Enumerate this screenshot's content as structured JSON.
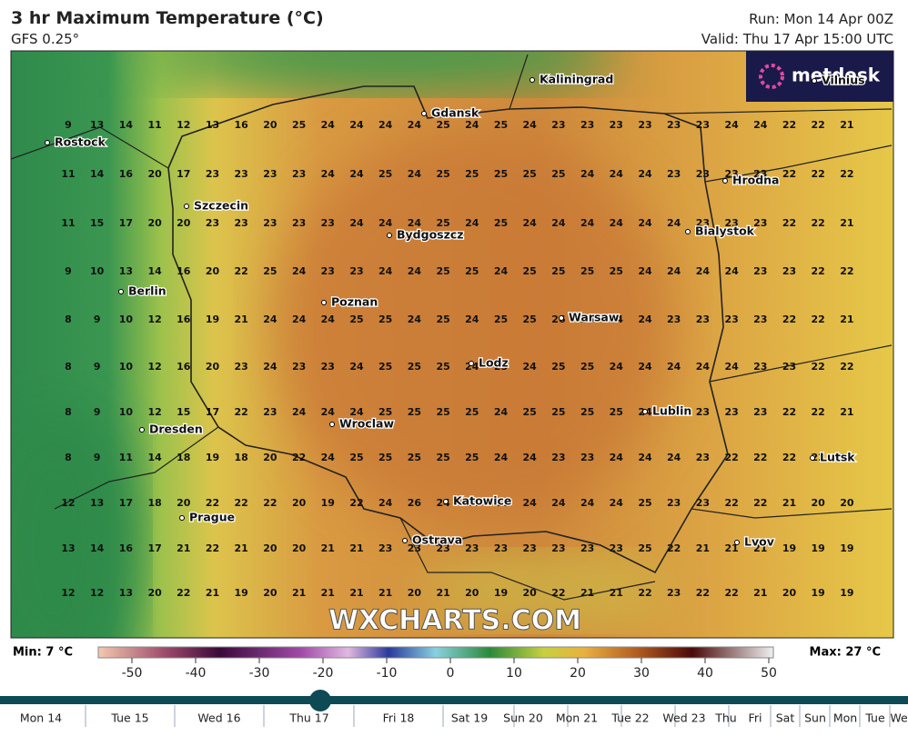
{
  "header": {
    "title": "3 hr Maximum Temperature (°C)",
    "model": "GFS 0.25°",
    "run": "Run: Mon 14 Apr 00Z",
    "valid": "Valid: Thu 17 Apr 15:00 UTC"
  },
  "map": {
    "values": [
      [
        9,
        13,
        14,
        11,
        12,
        13,
        16,
        20,
        25,
        24,
        24,
        24,
        24,
        25,
        24,
        25,
        24,
        23,
        23,
        23,
        23,
        23,
        23,
        24,
        24,
        22,
        22,
        21
      ],
      [
        11,
        14,
        16,
        20,
        17,
        23,
        23,
        23,
        23,
        24,
        24,
        25,
        24,
        25,
        25,
        25,
        25,
        25,
        24,
        24,
        24,
        23,
        23,
        23,
        23,
        22,
        22,
        22
      ],
      [
        11,
        15,
        17,
        20,
        20,
        23,
        23,
        23,
        23,
        23,
        24,
        24,
        24,
        25,
        24,
        25,
        24,
        24,
        24,
        24,
        24,
        24,
        23,
        23,
        23,
        22,
        22,
        21
      ],
      [
        9,
        10,
        13,
        14,
        16,
        20,
        22,
        25,
        24,
        23,
        23,
        24,
        24,
        25,
        25,
        24,
        25,
        25,
        25,
        25,
        24,
        24,
        24,
        24,
        23,
        23,
        22,
        22
      ],
      [
        8,
        9,
        10,
        12,
        16,
        19,
        21,
        24,
        24,
        24,
        25,
        25,
        24,
        25,
        24,
        25,
        25,
        26,
        25,
        24,
        24,
        23,
        23,
        23,
        23,
        22,
        22,
        21
      ],
      [
        8,
        9,
        10,
        12,
        16,
        20,
        23,
        24,
        23,
        23,
        24,
        25,
        25,
        25,
        24,
        23,
        24,
        25,
        25,
        24,
        24,
        24,
        24,
        24,
        23,
        23,
        22,
        22
      ],
      [
        8,
        9,
        10,
        12,
        15,
        17,
        22,
        23,
        24,
        24,
        24,
        25,
        25,
        25,
        25,
        24,
        25,
        25,
        25,
        25,
        24,
        23,
        23,
        23,
        23,
        22,
        22,
        21
      ],
      [
        8,
        9,
        11,
        14,
        18,
        19,
        18,
        20,
        22,
        24,
        25,
        25,
        25,
        25,
        25,
        24,
        24,
        23,
        23,
        24,
        24,
        24,
        23,
        22,
        22,
        22,
        22,
        22
      ],
      [
        12,
        13,
        17,
        18,
        20,
        22,
        22,
        22,
        20,
        19,
        22,
        24,
        26,
        24,
        24,
        24,
        24,
        24,
        24,
        24,
        25,
        23,
        23,
        22,
        22,
        21,
        20,
        20
      ],
      [
        13,
        14,
        16,
        17,
        21,
        22,
        21,
        20,
        20,
        21,
        21,
        23,
        23,
        23,
        23,
        23,
        23,
        23,
        23,
        23,
        25,
        22,
        21,
        21,
        21,
        19,
        19,
        19
      ],
      [
        12,
        12,
        13,
        20,
        22,
        21,
        19,
        20,
        21,
        21,
        21,
        21,
        20,
        21,
        20,
        19,
        20,
        22,
        21,
        21,
        22,
        23,
        22,
        22,
        21,
        20,
        19,
        19
      ]
    ],
    "cities": [
      "Kaliningrad",
      "Gdansk",
      "Rostock",
      "Hrodna",
      "Szczecin",
      "Bydgoszcz",
      "Bialystok",
      "Berlin",
      "Poznan",
      "Warsaw",
      "Lodz",
      "Lublin",
      "Dresden",
      "Wroclaw",
      "Lutsk",
      "Katowice",
      "Prague",
      "Ostrava",
      "Lvov",
      "Vilnius"
    ],
    "watermark": "WXCHARTS.COM",
    "logo": "metdesk"
  },
  "legend": {
    "min": "Min: 7 °C",
    "max": "Max: 27 °C",
    "ticks": [
      -50,
      -40,
      -30,
      -20,
      -10,
      0,
      10,
      20,
      30,
      40,
      50
    ]
  },
  "timeline": {
    "days": [
      "Mon 14",
      "Tue 15",
      "Wed 16",
      "Thu 17",
      "Fri 18",
      "Sat 19",
      "Sun 20",
      "Mon 21",
      "Tue 22",
      "Wed 23",
      "Thu",
      "Fri",
      "Sat",
      "Sun",
      "Mon",
      "Tue",
      "We"
    ]
  }
}
